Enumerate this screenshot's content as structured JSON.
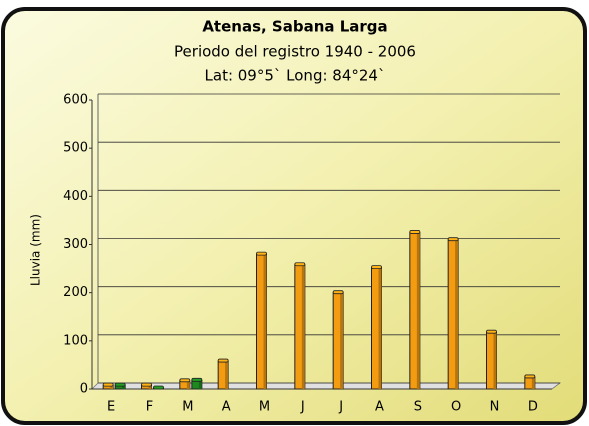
{
  "chart_data": {
    "type": "bar",
    "title": "Atenas, Sabana Larga",
    "subtitle": "Periodo del registro 1940 - 2006",
    "annotation": "Lat: 09°5` Long: 84°24`",
    "y_label": "Lluvia (mm)",
    "categories": [
      "E",
      "F",
      "M",
      "A",
      "M",
      "J",
      "J",
      "A",
      "S",
      "O",
      "N",
      "D"
    ],
    "series": [
      {
        "color": "#f39c12",
        "values": [
          8,
          8,
          17,
          58,
          280,
          258,
          200,
          252,
          325,
          310,
          118,
          25
        ]
      },
      {
        "color": "#1e8a1e",
        "values": [
          8,
          2,
          18,
          null,
          null,
          null,
          null,
          null,
          null,
          null,
          null,
          null
        ]
      }
    ],
    "ylim": [
      0,
      600
    ],
    "yticks": [
      0,
      100,
      200,
      300,
      400,
      500,
      600
    ],
    "grid": true
  }
}
